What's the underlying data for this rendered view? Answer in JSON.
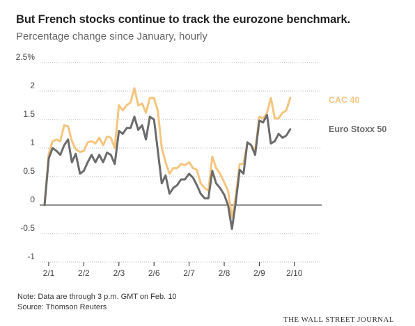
{
  "title": "But French stocks continue to track the eurozone benchmark.",
  "subtitle": "Percentage change since January, hourly",
  "note": "Note: Data are through 3 p.m. GMT on Feb. 10",
  "source": "Source: Thomson Reuters",
  "publisher": "THE WALL STREET JOURNAL",
  "chart_data": {
    "type": "line",
    "title": "But French stocks continue to track the eurozone benchmark.",
    "subtitle": "Percentage change since January, hourly",
    "xlabel": "",
    "ylabel": "",
    "x_ticks": [
      {
        "label": "2/1",
        "x": 0
      },
      {
        "label": "2/2",
        "x": 1
      },
      {
        "label": "2/3",
        "x": 2
      },
      {
        "label": "2/6",
        "x": 3
      },
      {
        "label": "2/7",
        "x": 4
      },
      {
        "label": "2/8",
        "x": 5
      },
      {
        "label": "2/9",
        "x": 6
      },
      {
        "label": "2/10",
        "x": 7
      }
    ],
    "xlim": [
      -0.15,
      7.8
    ],
    "ylim": [
      -1,
      2.5
    ],
    "y_ticks": [
      -1,
      -0.5,
      0,
      0.5,
      1,
      1.5,
      2,
      2.5
    ],
    "y_tick_labels": [
      "-1",
      "-0.5",
      "0",
      "0.5",
      "1",
      "1.5",
      "2",
      "2.5%"
    ],
    "grid": "horizontal dotted, solid zero line",
    "legend": "inline labels at right end of lines",
    "series": [
      {
        "name": "CAC 40",
        "color": "#f5c57f",
        "values": [
          [
            -0.12,
            0.0
          ],
          [
            0.0,
            0.9
          ],
          [
            0.11,
            1.12
          ],
          [
            0.22,
            1.15
          ],
          [
            0.33,
            1.12
          ],
          [
            0.44,
            1.4
          ],
          [
            0.55,
            1.38
          ],
          [
            0.66,
            1.12
          ],
          [
            0.77,
            0.98
          ],
          [
            0.89,
            0.93
          ],
          [
            1.0,
            0.95
          ],
          [
            1.11,
            1.1
          ],
          [
            1.22,
            1.12
          ],
          [
            1.33,
            1.08
          ],
          [
            1.44,
            1.18
          ],
          [
            1.55,
            1.05
          ],
          [
            1.66,
            1.2
          ],
          [
            1.77,
            1.18
          ],
          [
            1.88,
            1.0
          ],
          [
            2.0,
            1.75
          ],
          [
            2.11,
            1.66
          ],
          [
            2.22,
            1.75
          ],
          [
            2.33,
            1.8
          ],
          [
            2.44,
            2.05
          ],
          [
            2.55,
            1.75
          ],
          [
            2.66,
            1.78
          ],
          [
            2.77,
            1.62
          ],
          [
            2.88,
            1.88
          ],
          [
            3.0,
            1.88
          ],
          [
            3.11,
            1.65
          ],
          [
            3.22,
            1.0
          ],
          [
            3.33,
            0.75
          ],
          [
            3.44,
            0.55
          ],
          [
            3.55,
            0.65
          ],
          [
            3.66,
            0.65
          ],
          [
            3.77,
            0.72
          ],
          [
            3.88,
            0.7
          ],
          [
            4.0,
            0.75
          ],
          [
            4.11,
            0.65
          ],
          [
            4.22,
            0.62
          ],
          [
            4.33,
            0.38
          ],
          [
            4.44,
            0.3
          ],
          [
            4.55,
            0.25
          ],
          [
            4.66,
            0.85
          ],
          [
            4.77,
            0.65
          ],
          [
            4.88,
            0.55
          ],
          [
            5.0,
            0.4
          ],
          [
            5.11,
            0.25
          ],
          [
            5.22,
            -0.22
          ],
          [
            5.33,
            0.15
          ],
          [
            5.44,
            0.72
          ],
          [
            5.55,
            0.72
          ],
          [
            5.66,
            1.1
          ],
          [
            5.77,
            1.05
          ],
          [
            5.88,
            0.95
          ],
          [
            6.0,
            1.55
          ],
          [
            6.11,
            1.52
          ],
          [
            6.22,
            1.62
          ],
          [
            6.33,
            1.88
          ],
          [
            6.44,
            1.52
          ],
          [
            6.55,
            1.52
          ],
          [
            6.66,
            1.62
          ],
          [
            6.77,
            1.66
          ],
          [
            6.88,
            1.88
          ]
        ]
      },
      {
        "name": "Euro Stoxx 50",
        "color": "#6b6b6b",
        "values": [
          [
            -0.12,
            0.0
          ],
          [
            0.0,
            0.82
          ],
          [
            0.11,
            1.0
          ],
          [
            0.22,
            0.95
          ],
          [
            0.33,
            0.88
          ],
          [
            0.44,
            1.05
          ],
          [
            0.55,
            1.15
          ],
          [
            0.66,
            0.75
          ],
          [
            0.77,
            0.9
          ],
          [
            0.89,
            0.55
          ],
          [
            1.0,
            0.6
          ],
          [
            1.11,
            0.75
          ],
          [
            1.22,
            0.88
          ],
          [
            1.33,
            0.75
          ],
          [
            1.44,
            0.88
          ],
          [
            1.55,
            0.75
          ],
          [
            1.66,
            0.92
          ],
          [
            1.77,
            0.88
          ],
          [
            1.88,
            0.72
          ],
          [
            2.0,
            1.3
          ],
          [
            2.11,
            1.25
          ],
          [
            2.22,
            1.35
          ],
          [
            2.33,
            1.35
          ],
          [
            2.44,
            1.55
          ],
          [
            2.55,
            1.32
          ],
          [
            2.66,
            1.4
          ],
          [
            2.77,
            1.15
          ],
          [
            2.88,
            1.55
          ],
          [
            3.0,
            1.5
          ],
          [
            3.11,
            0.95
          ],
          [
            3.22,
            0.38
          ],
          [
            3.33,
            0.52
          ],
          [
            3.44,
            0.2
          ],
          [
            3.55,
            0.3
          ],
          [
            3.66,
            0.35
          ],
          [
            3.77,
            0.45
          ],
          [
            3.88,
            0.45
          ],
          [
            4.0,
            0.55
          ],
          [
            4.11,
            0.48
          ],
          [
            4.22,
            0.35
          ],
          [
            4.33,
            0.2
          ],
          [
            4.44,
            0.12
          ],
          [
            4.55,
            0.12
          ],
          [
            4.66,
            0.6
          ],
          [
            4.77,
            0.38
          ],
          [
            4.88,
            0.3
          ],
          [
            5.0,
            0.18
          ],
          [
            5.11,
            0.0
          ],
          [
            5.22,
            -0.42
          ],
          [
            5.33,
            0.05
          ],
          [
            5.44,
            0.62
          ],
          [
            5.55,
            0.55
          ],
          [
            5.66,
            1.1
          ],
          [
            5.77,
            1.05
          ],
          [
            5.88,
            0.88
          ],
          [
            6.0,
            1.48
          ],
          [
            6.11,
            1.45
          ],
          [
            6.22,
            1.58
          ],
          [
            6.33,
            1.08
          ],
          [
            6.44,
            1.12
          ],
          [
            6.55,
            1.25
          ],
          [
            6.66,
            1.18
          ],
          [
            6.77,
            1.22
          ],
          [
            6.88,
            1.33
          ]
        ]
      }
    ]
  }
}
